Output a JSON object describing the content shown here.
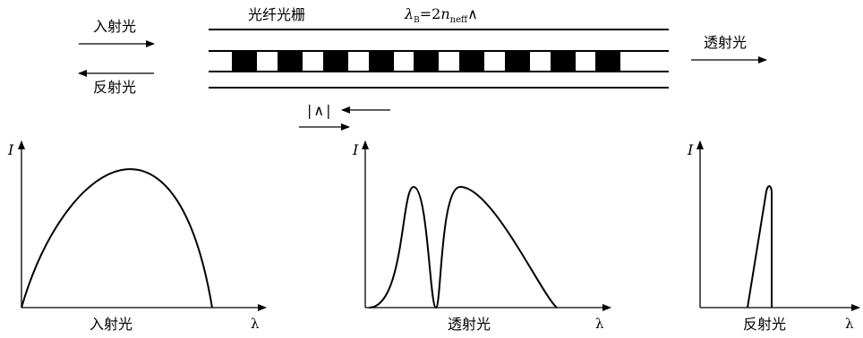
{
  "top": {
    "incident_label": "入射光",
    "reflected_label": "反射光",
    "transmitted_label": "透射光",
    "grating_label": "光纤光栅",
    "bragg": {
      "lambda": "λ",
      "sub_B": "B",
      "eq": "=2",
      "n": "n",
      "sub_neff": "neff",
      "period": "∧"
    },
    "period_marker": "|∧|"
  },
  "plots": [
    {
      "y_label": "I",
      "x_label": "λ",
      "caption": "入射光"
    },
    {
      "y_label": "I",
      "x_label": "λ",
      "caption": "透射光"
    },
    {
      "y_label": "I",
      "x_label": "λ",
      "caption": "反射光"
    }
  ],
  "colors": {
    "ink": "#000000",
    "background": "#ffffff"
  }
}
